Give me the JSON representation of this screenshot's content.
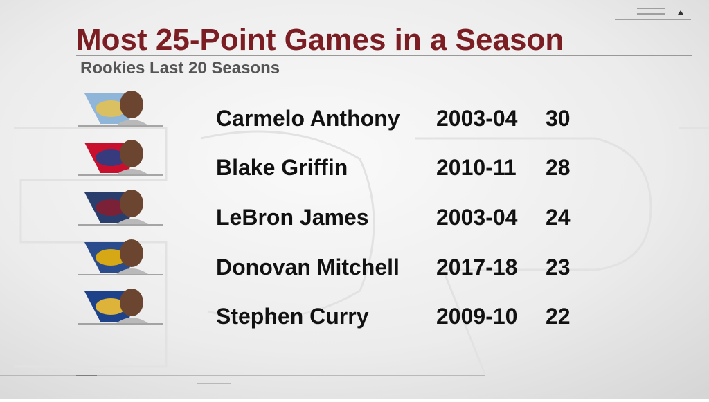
{
  "header": {
    "title": "Most 25-Point Games in a Season",
    "subtitle": "Rookies Last 20 Seasons"
  },
  "table": {
    "rows": [
      [
        "Carmelo Anthony",
        "2003-04",
        30
      ],
      [
        "Blake Griffin",
        "2010-11",
        28
      ],
      [
        "LeBron James",
        "2003-04",
        24
      ],
      [
        "Donovan Mitchell",
        "2017-18",
        23
      ],
      [
        "Stephen Curry",
        "2009-10",
        22
      ]
    ]
  }
}
